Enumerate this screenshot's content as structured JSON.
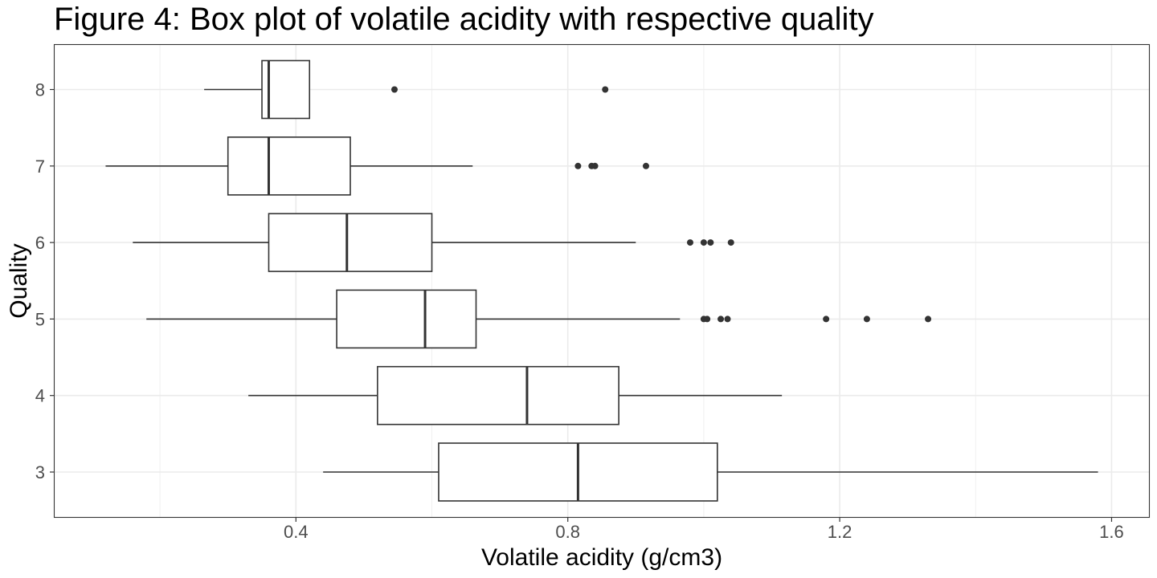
{
  "chart_data": {
    "type": "boxplot",
    "orientation": "horizontal",
    "title": "Figure 4: Box plot of volatile acidity with respective quality",
    "xlabel": "Volatile acidity (g/cm3)",
    "ylabel": "Quality",
    "xlim": [
      0.045,
      1.655
    ],
    "x_ticks": [
      0.4,
      0.8,
      1.2,
      1.6
    ],
    "x_tick_labels": [
      "0.4",
      "0.8",
      "1.2",
      "1.6"
    ],
    "categories": [
      "3",
      "4",
      "5",
      "6",
      "7",
      "8"
    ],
    "grid": true,
    "boxes": [
      {
        "quality": "3",
        "whisker_low": 0.44,
        "q1": 0.61,
        "median": 0.815,
        "q3": 1.02,
        "whisker_high": 1.58,
        "outliers": []
      },
      {
        "quality": "4",
        "whisker_low": 0.33,
        "q1": 0.52,
        "median": 0.74,
        "q3": 0.875,
        "whisker_high": 1.115,
        "outliers": []
      },
      {
        "quality": "5",
        "whisker_low": 0.18,
        "q1": 0.46,
        "median": 0.59,
        "q3": 0.665,
        "whisker_high": 0.965,
        "outliers": [
          1.0,
          1.005,
          1.025,
          1.035,
          1.18,
          1.24,
          1.33
        ]
      },
      {
        "quality": "6",
        "whisker_low": 0.16,
        "q1": 0.36,
        "median": 0.475,
        "q3": 0.6,
        "whisker_high": 0.9,
        "outliers": [
          0.98,
          1.0,
          1.01,
          1.04
        ]
      },
      {
        "quality": "7",
        "whisker_low": 0.12,
        "q1": 0.3,
        "median": 0.36,
        "q3": 0.48,
        "whisker_high": 0.66,
        "outliers": [
          0.815,
          0.835,
          0.84,
          0.915
        ]
      },
      {
        "quality": "8",
        "whisker_low": 0.265,
        "q1": 0.35,
        "median": 0.36,
        "q3": 0.42,
        "whisker_high": 0.42,
        "outliers": [
          0.545,
          0.855
        ]
      }
    ]
  }
}
